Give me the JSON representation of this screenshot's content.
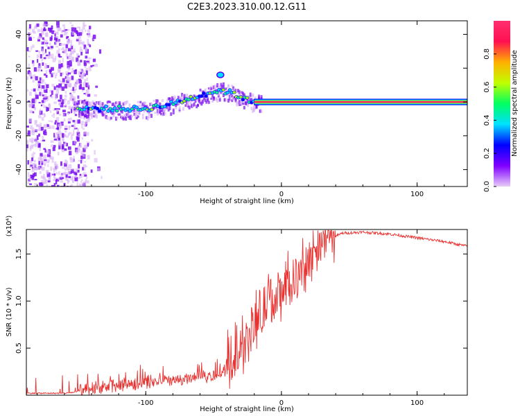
{
  "title": "C2E3.2023.310.00.12.G11",
  "chart_data": [
    {
      "type": "heatmap",
      "xlabel": "Height of straight line (km)",
      "ylabel": "Frequency (Hz)",
      "xlim": [
        -188,
        137
      ],
      "ylim": [
        -50,
        48
      ],
      "xticks": [
        -100,
        0,
        100
      ],
      "yticks": [
        -40,
        -20,
        0,
        20,
        40
      ],
      "colorbar": {
        "label": "Normalized spectral amplitude",
        "range": [
          0,
          1
        ],
        "ticks": [
          "0.0",
          "0.2",
          "0.4",
          "0.6",
          "0.8"
        ],
        "colors": [
          "#e8ccf8",
          "#8000ff",
          "#0000ff",
          "#00e0ff",
          "#00ff60",
          "#c0ff00",
          "#ffb000",
          "#ff1050",
          "#ff3070"
        ]
      },
      "ridge": [
        {
          "x": -150,
          "y": -4
        },
        {
          "x": -120,
          "y": -4
        },
        {
          "x": -100,
          "y": -4
        },
        {
          "x": -80,
          "y": -1
        },
        {
          "x": -60,
          "y": 4
        },
        {
          "x": -45,
          "y": 7
        },
        {
          "x": -35,
          "y": 5
        },
        {
          "x": -25,
          "y": 1
        },
        {
          "x": -15,
          "y": 0
        },
        {
          "x": 10,
          "y": 0
        },
        {
          "x": 137,
          "y": 0
        }
      ]
    },
    {
      "type": "line",
      "xlabel": "Height of straight line (km)",
      "ylabel": "SNR (10 * v/v)",
      "multiplier": "(x10⁴)",
      "xlim": [
        -188,
        137
      ],
      "ylim": [
        0,
        1.76
      ],
      "xticks": [
        -100,
        0,
        100
      ],
      "yticks": [
        0.5,
        1.0,
        1.5
      ],
      "ytick_labels": [
        "0.5",
        "1.0",
        "1.5"
      ],
      "series": [
        {
          "color": "#e8312f",
          "points": [
            {
              "x": -188,
              "y": 0.02
            },
            {
              "x": -160,
              "y": 0.02
            },
            {
              "x": -140,
              "y": 0.05
            },
            {
              "x": -120,
              "y": 0.1
            },
            {
              "x": -100,
              "y": 0.13
            },
            {
              "x": -80,
              "y": 0.15
            },
            {
              "x": -60,
              "y": 0.18
            },
            {
              "x": -45,
              "y": 0.22
            },
            {
              "x": -35,
              "y": 0.35
            },
            {
              "x": -28,
              "y": 0.5
            },
            {
              "x": -20,
              "y": 0.7
            },
            {
              "x": -10,
              "y": 0.95
            },
            {
              "x": 0,
              "y": 1.05
            },
            {
              "x": 10,
              "y": 1.2
            },
            {
              "x": 20,
              "y": 1.4
            },
            {
              "x": 30,
              "y": 1.62
            },
            {
              "x": 45,
              "y": 1.72
            },
            {
              "x": 60,
              "y": 1.73
            },
            {
              "x": 80,
              "y": 1.71
            },
            {
              "x": 100,
              "y": 1.67
            },
            {
              "x": 120,
              "y": 1.63
            },
            {
              "x": 137,
              "y": 1.58
            }
          ]
        }
      ]
    }
  ]
}
